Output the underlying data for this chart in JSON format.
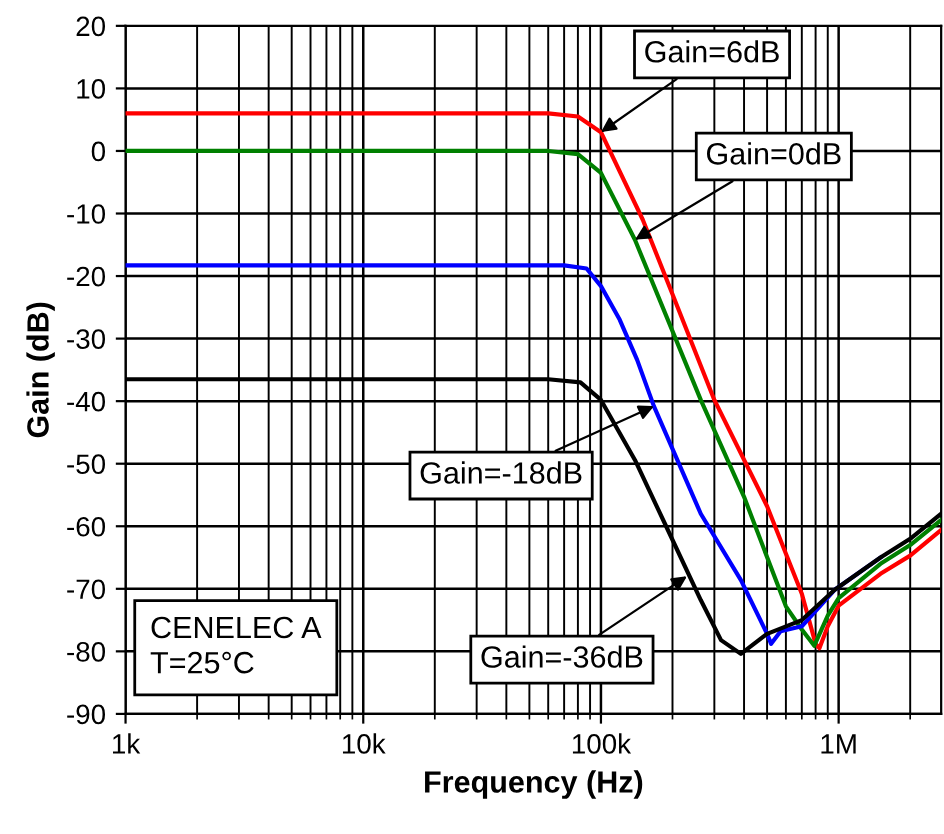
{
  "chart_data": {
    "type": "line",
    "xlabel": "Frequency (Hz)",
    "ylabel": "Gain (dB)",
    "log": "x",
    "xlim": [
      1000,
      2700000
    ],
    "xticks": [
      {
        "value": 1000,
        "label": "1k"
      },
      {
        "value": 10000,
        "label": "10k"
      },
      {
        "value": 100000,
        "label": "100k"
      },
      {
        "value": 1000000,
        "label": "1M"
      }
    ],
    "ylim": [
      -90,
      20
    ],
    "yticks": [
      -90,
      -80,
      -70,
      -60,
      -50,
      -40,
      -30,
      -20,
      -10,
      0,
      10,
      20
    ],
    "grid": true,
    "legend": false,
    "marker": "none",
    "line_style": "solid",
    "series": [
      {
        "color": "#ff0000",
        "x": [
          1000,
          60000,
          80000,
          100000,
          150000,
          200000,
          300000,
          500000,
          700000,
          800000,
          830000,
          900000,
          1000000,
          1500000,
          2000000,
          2700000
        ],
        "values": [
          6,
          6,
          5.5,
          3,
          -11,
          -22.9,
          -39.8,
          -56.8,
          -70.8,
          -78.8,
          -79.5,
          -76,
          -72.7,
          -67.6,
          -64.7,
          -60.6
        ]
      },
      {
        "color": "#008000",
        "x": [
          1000,
          60000,
          80000,
          100000,
          139000,
          263000,
          400000,
          600000,
          700000,
          790000,
          900000,
          1000000,
          1500000,
          2000000,
          2700000
        ],
        "values": [
          0,
          0,
          -0.5,
          -3.5,
          -14.2,
          -39.8,
          -55.3,
          -72.8,
          -76.5,
          -79.1,
          -74.3,
          -71.5,
          -66,
          -63,
          -59
        ]
      },
      {
        "color": "#0000ff",
        "x": [
          1000,
          70000,
          87000,
          100000,
          120000,
          142000,
          167000,
          263000,
          388000,
          500000,
          520000,
          570000,
          700000,
          960000,
          1500000
        ],
        "values": [
          -18.3,
          -18.3,
          -18.8,
          -21.6,
          -27,
          -33.4,
          -40.8,
          -58,
          -68.6,
          -77.2,
          -78.8,
          -76.8,
          -76,
          -70.2,
          -65
        ]
      },
      {
        "color": "#000000",
        "x": [
          1000,
          60000,
          82000,
          100000,
          139000,
          188000,
          263000,
          320000,
          388000,
          500000,
          700000,
          960000,
          1500000,
          2000000,
          2700000
        ],
        "values": [
          -36.5,
          -36.5,
          -37,
          -39.8,
          -49.4,
          -60,
          -71.8,
          -78.2,
          -80.4,
          -77.2,
          -75,
          -70.2,
          -65,
          -62,
          -58
        ]
      }
    ],
    "annotations": [
      {
        "text": "Gain=6dB",
        "x": 100000,
        "y": 3
      },
      {
        "text": "Gain=0dB",
        "x": 139000,
        "y": -14.2
      },
      {
        "text": "Gain=-18dB",
        "x": 167000,
        "y": -40.8
      },
      {
        "text": "Gain=-36dB",
        "x": 230000,
        "y": -68
      },
      "CENELEC A\nT=25°C"
    ]
  }
}
